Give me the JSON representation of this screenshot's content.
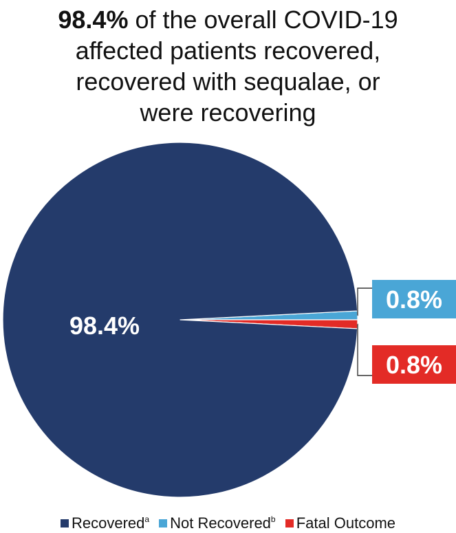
{
  "title": {
    "bold": "98.4%",
    "line1_rest": " of the overall COVID-19",
    "line2": "affected patients recovered,",
    "line3": "recovered with sequalae, or",
    "line4": "were recovering"
  },
  "chart_data": {
    "type": "pie",
    "slices": [
      {
        "name": "Recovered",
        "value": 98.4,
        "label": "98.4%",
        "color": "#243b6b"
      },
      {
        "name": "Not Recovered",
        "value": 0.8,
        "label": "0.8%",
        "color": "#4aa6d6"
      },
      {
        "name": "Fatal Outcome",
        "value": 0.8,
        "label": "0.8%",
        "color": "#e32b26"
      }
    ],
    "legend": [
      {
        "name": "Recovered",
        "sup": "a",
        "color": "#243b6b"
      },
      {
        "name": "Not Recovered",
        "sup": "b",
        "color": "#4aa6d6"
      },
      {
        "name": "Fatal Outcome",
        "sup": "",
        "color": "#e32b26"
      }
    ],
    "legend_position": "bottom"
  }
}
